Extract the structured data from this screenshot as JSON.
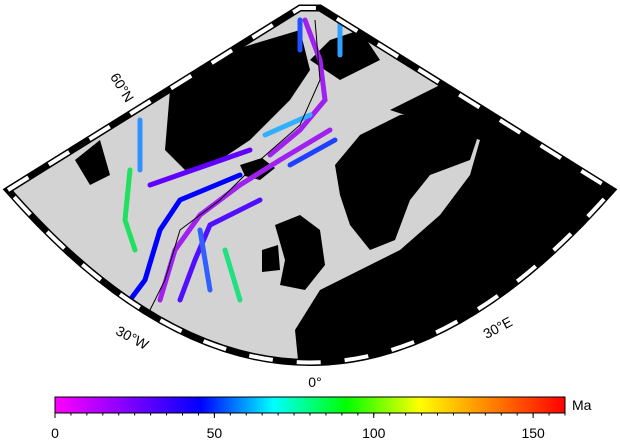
{
  "map": {
    "graticule_labels": [
      "60°N",
      "30°W",
      "0°",
      "30°E"
    ]
  },
  "colorbar": {
    "label": "Ma",
    "lim": [
      0,
      160
    ],
    "ticks": [
      0,
      50,
      100,
      150
    ],
    "colors": [
      "#ff00ff",
      "#8000ff",
      "#0000ff",
      "#00ffff",
      "#00ff00",
      "#ffff00",
      "#ff8000",
      "#ff0000"
    ]
  }
}
